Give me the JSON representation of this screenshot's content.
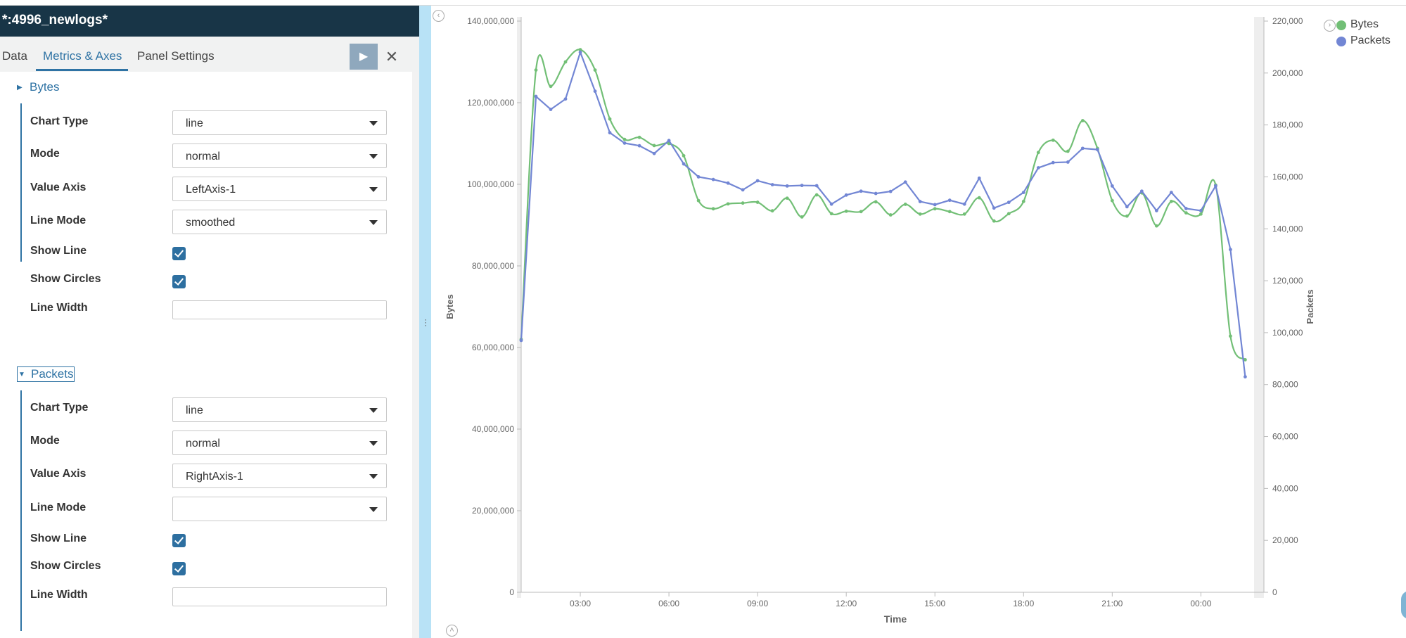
{
  "window": {
    "title": "*:4996_newlogs*"
  },
  "tabs": [
    {
      "label": "Data"
    },
    {
      "label": "Metrics & Axes"
    },
    {
      "label": "Panel Settings"
    }
  ],
  "toolbar": {
    "play_icon": "play-icon",
    "close_icon": "close-icon",
    "play_glyph": "▶",
    "close_glyph": "✕"
  },
  "bytes_section": {
    "title": "Bytes",
    "chart_type_label": "Chart Type",
    "chart_type_value": "line",
    "mode_label": "Mode",
    "mode_value": "normal",
    "value_axis_label": "Value Axis",
    "value_axis_value": "LeftAxis-1",
    "line_mode_label": "Line Mode",
    "line_mode_value": "smoothed",
    "show_line_label": "Show Line",
    "show_line_checked": true,
    "show_circles_label": "Show Circles",
    "show_circles_checked": true,
    "line_width_label": "Line Width",
    "line_width_value": ""
  },
  "packets_section": {
    "title": "Packets",
    "chart_type_label": "Chart Type",
    "chart_type_value": "line",
    "mode_label": "Mode",
    "mode_value": "normal",
    "value_axis_label": "Value Axis",
    "value_axis_value": "RightAxis-1",
    "line_mode_label": "Line Mode",
    "line_mode_value": "",
    "show_line_label": "Show Line",
    "show_line_checked": true,
    "show_circles_label": "Show Circles",
    "show_circles_checked": true,
    "line_width_label": "Line Width",
    "line_width_value": ""
  },
  "colors": {
    "bytes": "#72bf76",
    "packets": "#7286d4",
    "accent": "#2f73a4",
    "title_bar": "#183547"
  },
  "chart_data": {
    "type": "line",
    "xlabel": "Time",
    "ylabel_left": "Bytes",
    "ylabel_right": "Packets",
    "x_ticks": [
      "03:00",
      "06:00",
      "09:00",
      "12:00",
      "15:00",
      "18:00",
      "21:00",
      "00:00"
    ],
    "x_tick_hours": [
      3,
      6,
      9,
      12,
      15,
      18,
      21,
      24
    ],
    "xlim_hours": [
      1,
      25.8
    ],
    "left_ticks": [
      "0",
      "20,000,000",
      "40,000,000",
      "60,000,000",
      "80,000,000",
      "100,000,000",
      "120,000,000",
      "140,000,000"
    ],
    "left_tick_values": [
      0,
      20000000,
      40000000,
      60000000,
      80000000,
      100000000,
      120000000,
      140000000
    ],
    "right_ticks": [
      "0",
      "20,000",
      "40,000",
      "60,000",
      "80,000",
      "100,000",
      "120,000",
      "140,000",
      "160,000",
      "180,000",
      "200,000",
      "220,000"
    ],
    "right_tick_values": [
      0,
      20000,
      40000,
      60000,
      80000,
      100000,
      120000,
      140000,
      160000,
      180000,
      200000,
      220000
    ],
    "ylim_left": [
      0,
      140000000
    ],
    "ylim_right": [
      0,
      220000
    ],
    "legend": [
      "Bytes",
      "Packets"
    ],
    "legend_position": "top-right",
    "series": [
      {
        "name": "Bytes",
        "axis": "left",
        "smoothed": true,
        "x": [
          1,
          1.5,
          2,
          2.5,
          3,
          3.5,
          4,
          4.5,
          5,
          5.5,
          6,
          6.5,
          7,
          7.5,
          8,
          8.5,
          9,
          9.5,
          10,
          10.5,
          11,
          11.5,
          12,
          12.5,
          13,
          13.5,
          14,
          14.5,
          15,
          15.5,
          16,
          16.5,
          17,
          17.5,
          18,
          18.5,
          19,
          19.5,
          20,
          20.5,
          21,
          21.5,
          22,
          22.5,
          23,
          23.5,
          24,
          24.5,
          25,
          25.5
        ],
        "values": [
          62000000,
          128000000,
          124000000,
          130000000,
          133000000,
          128000000,
          116000000,
          111000000,
          111500000,
          109500000,
          110000000,
          107000000,
          96000000,
          94000000,
          95200000,
          95400000,
          95600000,
          93500000,
          96600000,
          92000000,
          97400000,
          92800000,
          93400000,
          93300000,
          95700000,
          92500000,
          95100000,
          92700000,
          94000000,
          93300000,
          92700000,
          96700000,
          91000000,
          92800000,
          95800000,
          107800000,
          110800000,
          108100000,
          115600000,
          108800000,
          96000000,
          92200000,
          97900000,
          89800000,
          95800000,
          93000000,
          92700000,
          99800000,
          62800000,
          57000000
        ]
      },
      {
        "name": "Packets",
        "axis": "right",
        "smoothed": false,
        "x": [
          1,
          1.5,
          2,
          2.5,
          3,
          3.5,
          4,
          4.5,
          5,
          5.5,
          6,
          6.5,
          7,
          7.5,
          8,
          8.5,
          9,
          9.5,
          10,
          10.5,
          11,
          11.5,
          12,
          12.5,
          13,
          13.5,
          14,
          14.5,
          15,
          15.5,
          16,
          16.5,
          17,
          17.5,
          18,
          18.5,
          19,
          19.5,
          20,
          20.5,
          21,
          21.5,
          22,
          22.5,
          23,
          23.5,
          24,
          24.5,
          25,
          25.5
        ],
        "values": [
          97000,
          191000,
          186000,
          190000,
          208000,
          193000,
          177000,
          173000,
          172000,
          169000,
          174000,
          165000,
          160000,
          159000,
          157600,
          155000,
          158500,
          157000,
          156500,
          156700,
          156600,
          149500,
          153000,
          154500,
          153600,
          154400,
          158000,
          150500,
          149300,
          151000,
          149500,
          159500,
          148000,
          150200,
          154000,
          163500,
          165500,
          165700,
          171000,
          170500,
          156500,
          148500,
          154500,
          147000,
          154000,
          147800,
          147000,
          156500,
          132000,
          83000
        ]
      }
    ]
  }
}
